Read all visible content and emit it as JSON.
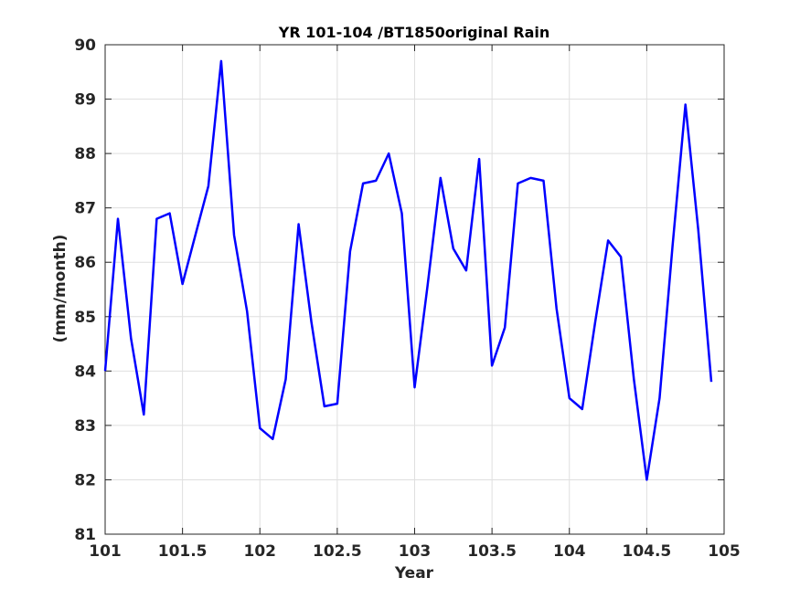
{
  "chart_data": {
    "type": "line",
    "title": "YR 101-104 /BT1850original Rain",
    "xlabel": "Year",
    "ylabel": "(mm/month)",
    "xlim": [
      101,
      105
    ],
    "ylim": [
      81,
      90
    ],
    "xticks": [
      101,
      101.5,
      102,
      102.5,
      103,
      103.5,
      104,
      104.5,
      105
    ],
    "xtick_labels": [
      "101",
      "101.5",
      "102",
      "102.5",
      "103",
      "103.5",
      "104",
      "104.5",
      "105"
    ],
    "yticks": [
      81,
      82,
      83,
      84,
      85,
      86,
      87,
      88,
      89,
      90
    ],
    "ytick_labels": [
      "81",
      "82",
      "83",
      "84",
      "85",
      "86",
      "87",
      "88",
      "89",
      "90"
    ],
    "grid": true,
    "box": true,
    "series": [
      {
        "color": "#0000ff",
        "x": [
          101.0,
          101.083,
          101.167,
          101.25,
          101.333,
          101.417,
          101.5,
          101.583,
          101.667,
          101.75,
          101.833,
          101.917,
          102.0,
          102.083,
          102.167,
          102.25,
          102.333,
          102.417,
          102.5,
          102.583,
          102.667,
          102.75,
          102.833,
          102.917,
          103.0,
          103.083,
          103.167,
          103.25,
          103.333,
          103.417,
          103.5,
          103.583,
          103.667,
          103.75,
          103.833,
          103.917,
          104.0,
          104.083,
          104.167,
          104.25,
          104.333,
          104.417,
          104.5,
          104.583,
          104.667,
          104.75,
          104.833,
          104.917
        ],
        "y": [
          84.0,
          86.8,
          84.6,
          83.2,
          86.8,
          86.9,
          85.6,
          86.5,
          87.4,
          89.7,
          86.5,
          85.1,
          82.95,
          82.75,
          83.85,
          86.7,
          84.9,
          83.35,
          83.4,
          86.2,
          87.45,
          87.5,
          88.0,
          86.9,
          83.7,
          85.55,
          87.55,
          86.25,
          85.85,
          87.9,
          84.1,
          84.8,
          87.45,
          87.55,
          87.5,
          85.15,
          83.5,
          83.3,
          84.9,
          86.4,
          86.1,
          83.85,
          82.0,
          83.5,
          86.3,
          88.9,
          86.6,
          83.8
        ]
      }
    ]
  }
}
